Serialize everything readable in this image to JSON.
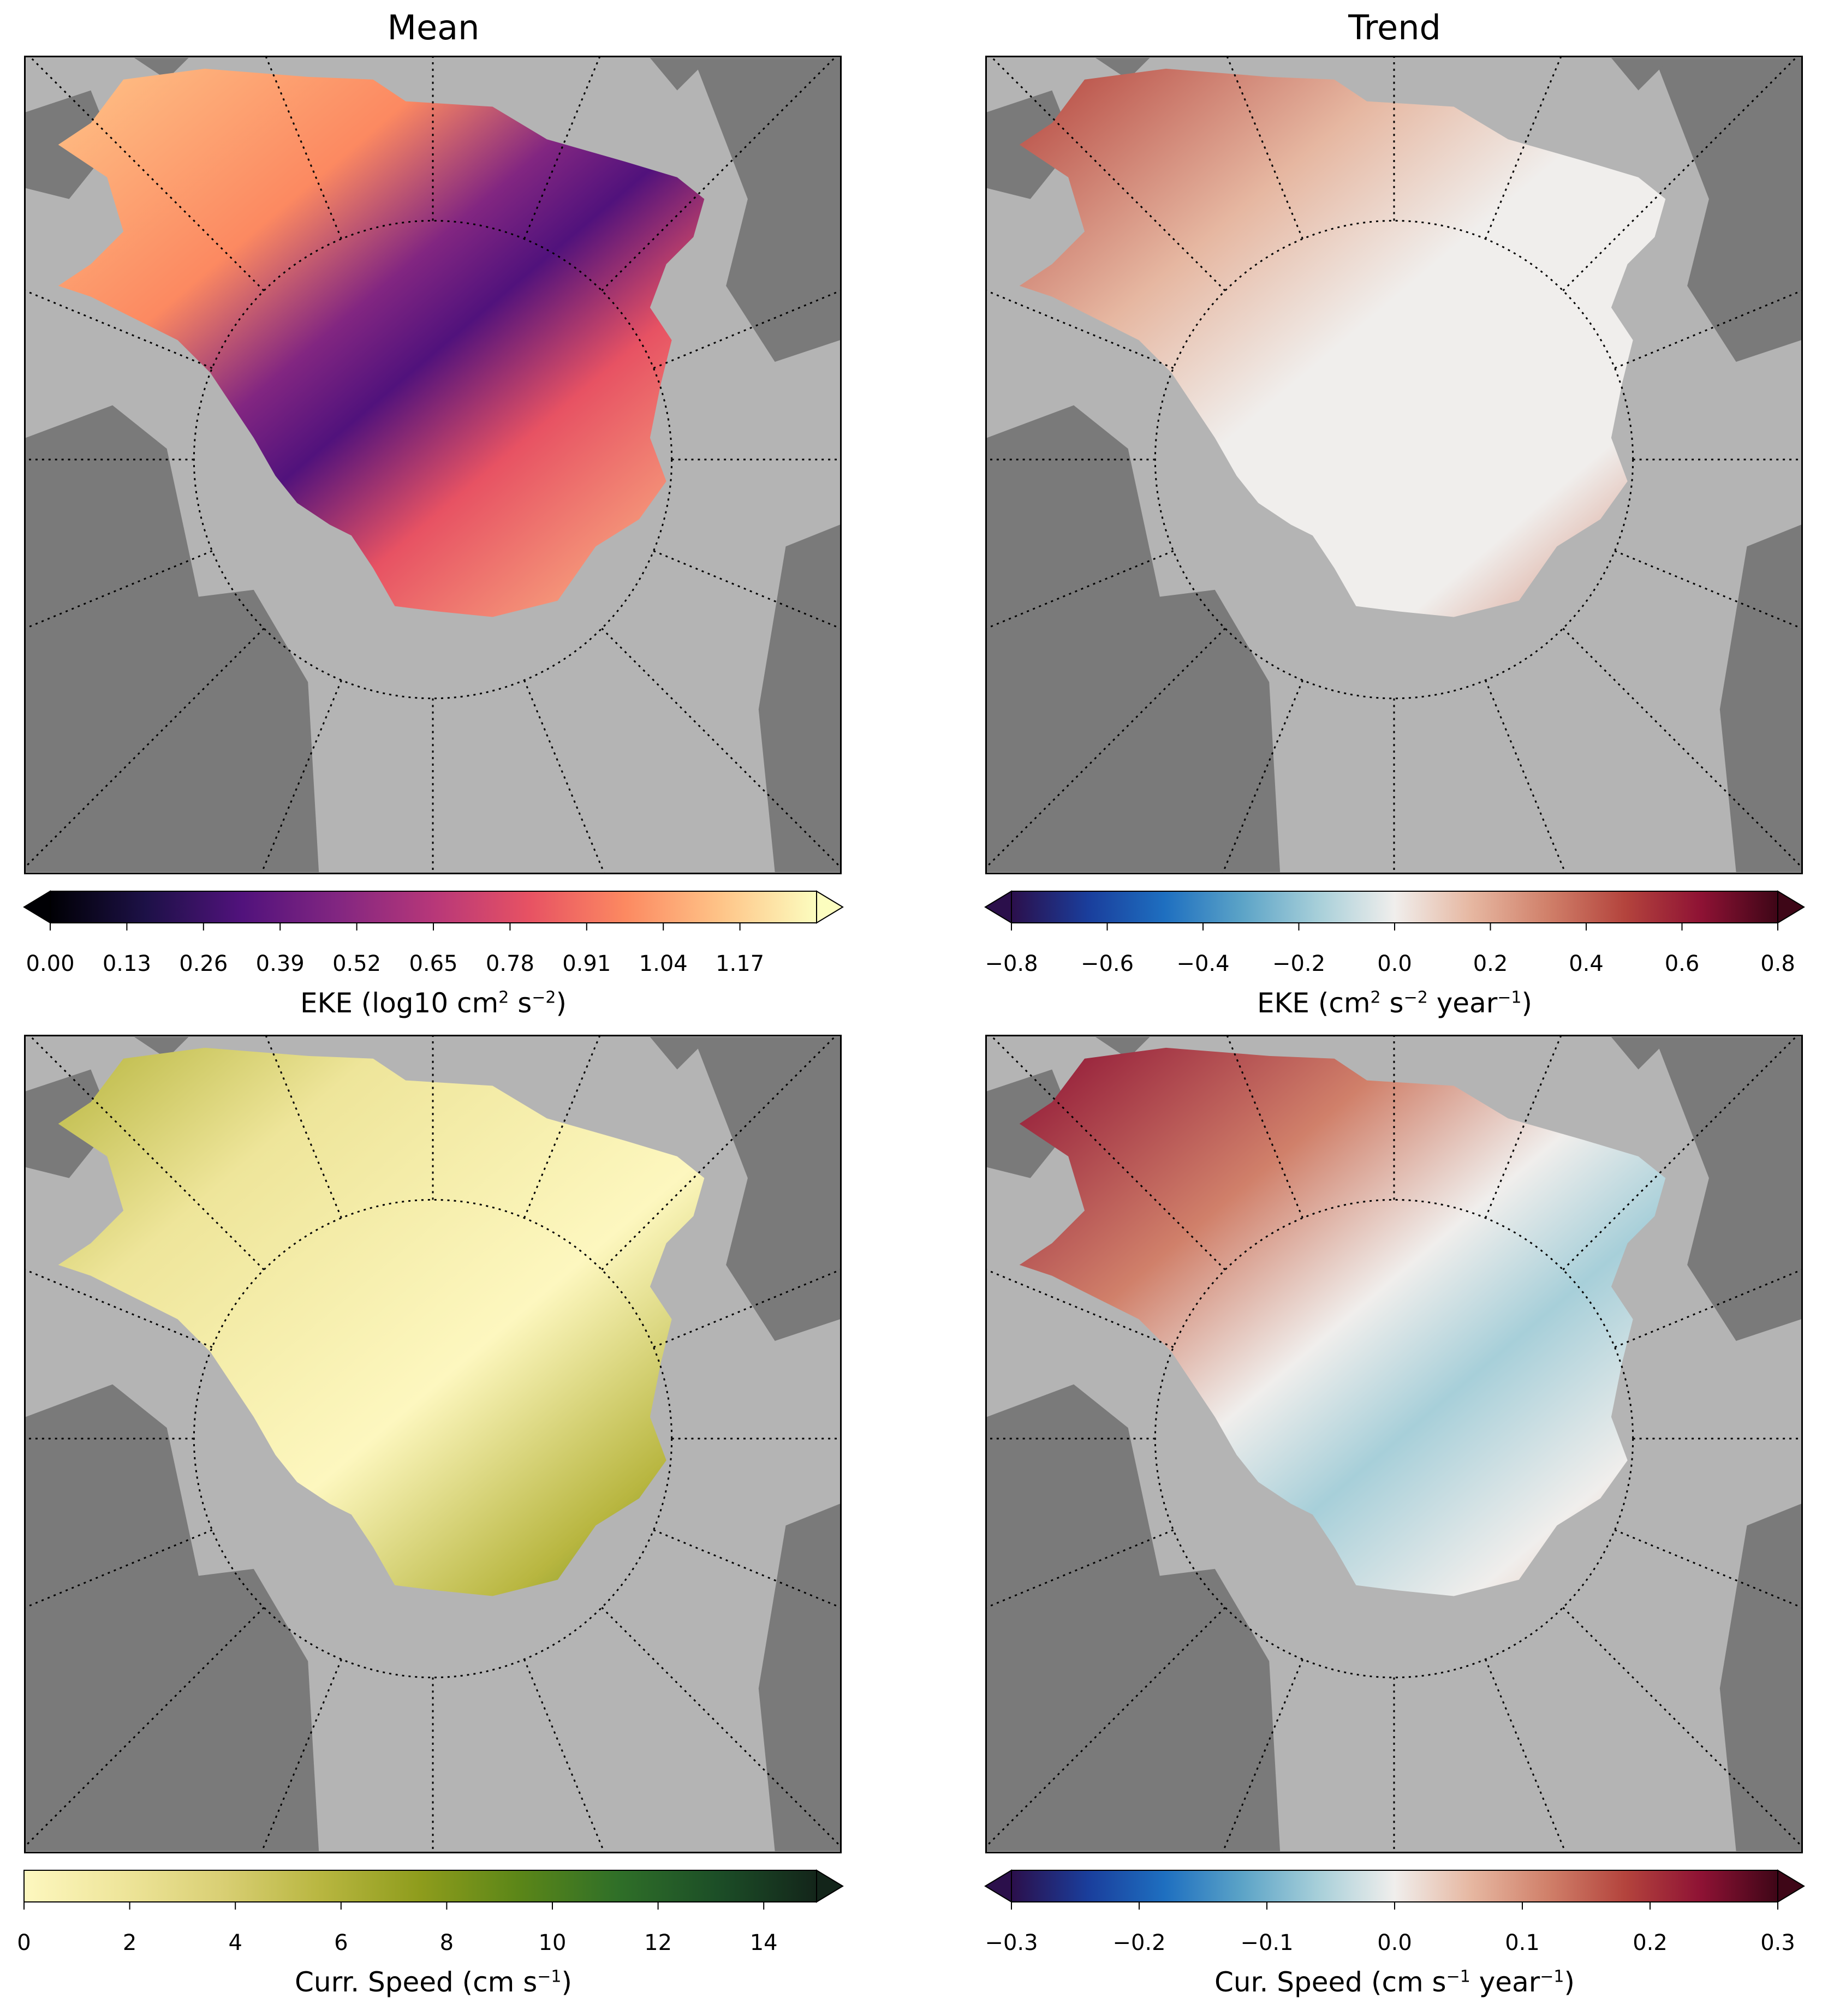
{
  "columns": {
    "left_title": "Mean",
    "right_title": "Trend"
  },
  "panels": [
    {
      "id": "mean-eke",
      "colormap": [
        "#000004",
        "#1d1147",
        "#51127c",
        "#822681",
        "#b73779",
        "#e75263",
        "#fc8961",
        "#fec488",
        "#fcfdbf"
      ],
      "colorbar": {
        "label_prefix": "EKE (log10 cm",
        "sup1": "2",
        "mid1": " s",
        "sup2": "−2",
        "mid2": ")",
        "sup3": "",
        "suffix": "",
        "ticks": [
          "0.00",
          "0.13",
          "0.26",
          "0.39",
          "0.52",
          "0.65",
          "0.78",
          "0.91",
          "1.04",
          "1.17"
        ],
        "tick_values": [
          0.0,
          0.13,
          0.26,
          0.39,
          0.52,
          0.65,
          0.78,
          0.91,
          1.04,
          1.17
        ],
        "vmin": 0.0,
        "vmax": 1.3,
        "extend_left": true,
        "extend_right": true
      }
    },
    {
      "id": "trend-eke",
      "colormap": [
        "#2b0f4b",
        "#1a3e9c",
        "#1e6fc0",
        "#5ba3c7",
        "#a7cfd9",
        "#f0eeec",
        "#e6b7a1",
        "#d0806a",
        "#b4443d",
        "#8e1234",
        "#3e0617"
      ],
      "colorbar": {
        "label_prefix": "EKE (cm",
        "sup1": "2",
        "mid1": " s",
        "sup2": "−2",
        "mid2": " year",
        "sup3": "−1",
        "suffix": ")",
        "ticks": [
          "−0.8",
          "−0.6",
          "−0.4",
          "−0.2",
          "0.0",
          "0.2",
          "0.4",
          "0.6",
          "0.8"
        ],
        "tick_values": [
          -0.8,
          -0.6,
          -0.4,
          -0.2,
          0.0,
          0.2,
          0.4,
          0.6,
          0.8
        ],
        "vmin": -0.8,
        "vmax": 0.8,
        "extend_left": true,
        "extend_right": true
      }
    },
    {
      "id": "mean-speed",
      "colormap": [
        "#fdf7bf",
        "#eee59a",
        "#d9cf74",
        "#b8b640",
        "#8e9c1c",
        "#5b8618",
        "#2f6f28",
        "#1c4e27",
        "#13251a"
      ],
      "colorbar": {
        "label_prefix": "Curr. Speed (cm s",
        "sup1": "−1",
        "mid1": ")",
        "sup2": "",
        "mid2": "",
        "sup3": "",
        "suffix": "",
        "ticks": [
          "0",
          "2",
          "4",
          "6",
          "8",
          "10",
          "12",
          "14"
        ],
        "tick_values": [
          0,
          2,
          4,
          6,
          8,
          10,
          12,
          14
        ],
        "vmin": 0,
        "vmax": 15,
        "extend_left": false,
        "extend_right": true
      }
    },
    {
      "id": "trend-speed",
      "colormap": [
        "#2b0f4b",
        "#1a3e9c",
        "#1e6fc0",
        "#5ba3c7",
        "#a7cfd9",
        "#f0eeec",
        "#e6b7a1",
        "#d0806a",
        "#b4443d",
        "#8e1234",
        "#3e0617"
      ],
      "colorbar": {
        "label_prefix": "Cur. Speed (cm s",
        "sup1": "−1",
        "mid1": " year",
        "sup2": "−1",
        "mid2": ")",
        "sup3": "",
        "suffix": "",
        "ticks": [
          "−0.3",
          "−0.2",
          "−0.1",
          "0.0",
          "0.1",
          "0.2",
          "0.3"
        ],
        "tick_values": [
          -0.3,
          -0.2,
          -0.1,
          0.0,
          0.1,
          0.2,
          0.3
        ],
        "vmin": -0.3,
        "vmax": 0.3,
        "extend_left": true,
        "extend_right": true
      }
    }
  ]
}
